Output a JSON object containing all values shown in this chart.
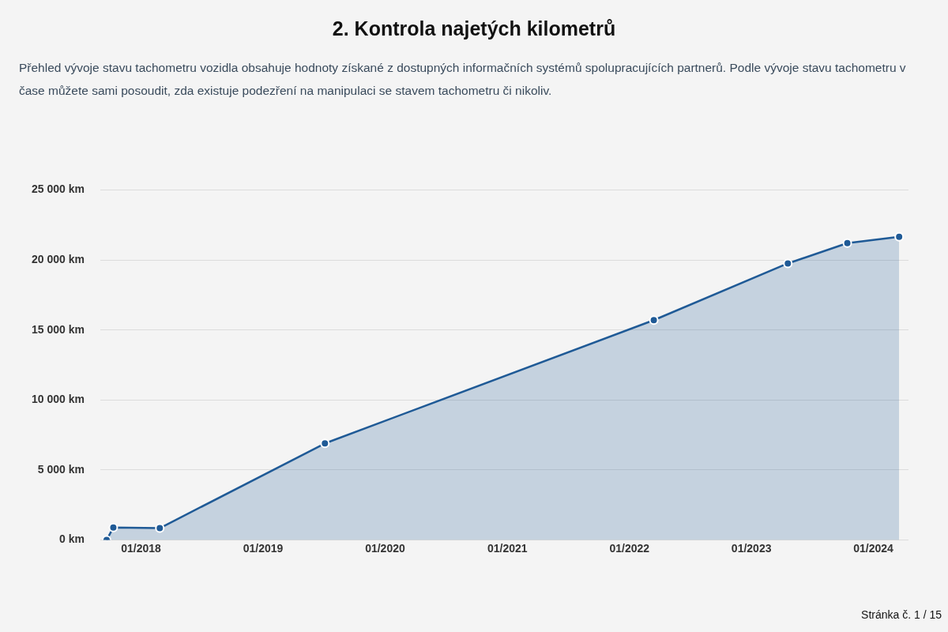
{
  "chart_data": {
    "type": "area",
    "title": "2. Kontrola najetých kilometrů",
    "subtitle": "Přehled vývoje stavu tachometru vozidla obsahuje hodnoty získané z dostupných informačních systémů spolupracujících partnerů. Podle vývoje stavu tachometru v čase můžete sami posoudit, zda existuje podezření na manipulaci se stavem tachometru či nikoliv.",
    "x": [
      "2017-09-20",
      "2017-10-10",
      "2018-02-26",
      "2019-07-05",
      "2022-03-15",
      "2023-04-20",
      "2023-10-15",
      "2024-03-18"
    ],
    "series": [
      {
        "color": "#1f5a96",
        "values": [
          0,
          900,
          850,
          6900,
          15700,
          19750,
          21200,
          21650
        ]
      }
    ],
    "xlim": [
      "2017-09-01",
      "2024-04-15"
    ],
    "xticks": [
      {
        "value": "2018-01",
        "label": "01/2018"
      },
      {
        "value": "2019-01",
        "label": "01/2019"
      },
      {
        "value": "2020-01",
        "label": "01/2020"
      },
      {
        "value": "2021-01",
        "label": "01/2021"
      },
      {
        "value": "2022-01",
        "label": "01/2022"
      },
      {
        "value": "2023-01",
        "label": "01/2023"
      },
      {
        "value": "2024-01",
        "label": "01/2024"
      }
    ],
    "ylim": [
      0,
      25000
    ],
    "yticks": [
      {
        "value": 0,
        "label": "0 km"
      },
      {
        "value": 5000,
        "label": "5 000 km"
      },
      {
        "value": 10000,
        "label": "10 000 km"
      },
      {
        "value": 15000,
        "label": "15 000 km"
      },
      {
        "value": 20000,
        "label": "20 000 km"
      },
      {
        "value": 25000,
        "label": "25 000 km"
      }
    ],
    "grid": "y",
    "marker": "circle",
    "legend": false,
    "annotations": [
      "Stránka č. 1 / 15"
    ]
  }
}
